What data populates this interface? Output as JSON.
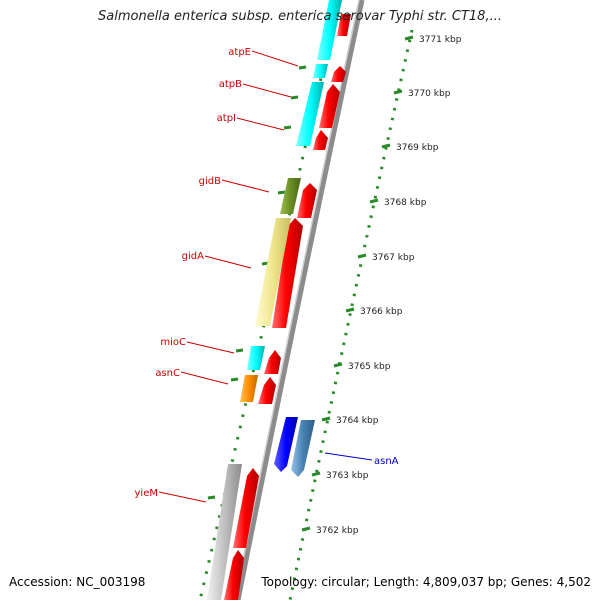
{
  "title": "Salmonella enterica subsp. enterica serovar Typhi str. CT18,...",
  "accession": "Accession: NC_003198",
  "topology": "Topology: circular; Length: 4,809,037 bp; Genes: 4,502",
  "colors": {
    "background": "#ffffff",
    "gene_label_outer": "#cc0000",
    "gene_label_inner": "#0000cc",
    "tick_marks": "#2a8a2a",
    "backbone": "#8c8c8c",
    "cds_forward": "#ff0000"
  },
  "ruler": {
    "unit": "kbp",
    "ticks": [
      {
        "kbp": 3771,
        "label": "3771 kbp"
      },
      {
        "kbp": 3770,
        "label": "3770 kbp"
      },
      {
        "kbp": 3769,
        "label": "3769 kbp"
      },
      {
        "kbp": 3768,
        "label": "3768 kbp"
      },
      {
        "kbp": 3767,
        "label": "3767 kbp"
      },
      {
        "kbp": 3766,
        "label": "3766 kbp"
      },
      {
        "kbp": 3765,
        "label": "3765 kbp"
      },
      {
        "kbp": 3764,
        "label": "3764 kbp"
      },
      {
        "kbp": 3763,
        "label": "3763 kbp"
      },
      {
        "kbp": 3762,
        "label": "3762 kbp"
      }
    ]
  },
  "genes": [
    {
      "name": "atpE",
      "strand": "outer",
      "color": "#00ffff"
    },
    {
      "name": "atpB",
      "strand": "outer",
      "color": "#00ffff"
    },
    {
      "name": "atpI",
      "strand": "outer",
      "color": "#00ffff"
    },
    {
      "name": "gidB",
      "strand": "outer",
      "color": "#6b8e23"
    },
    {
      "name": "gidA",
      "strand": "outer",
      "color": "#f0e68c"
    },
    {
      "name": "mioC",
      "strand": "outer",
      "color": "#00ffff"
    },
    {
      "name": "asnC",
      "strand": "outer",
      "color": "#ff8c00"
    },
    {
      "name": "asnA",
      "strand": "inner",
      "color": "#0000ff"
    },
    {
      "name": "yieM",
      "strand": "outer",
      "color": "#c0c0c0"
    }
  ]
}
